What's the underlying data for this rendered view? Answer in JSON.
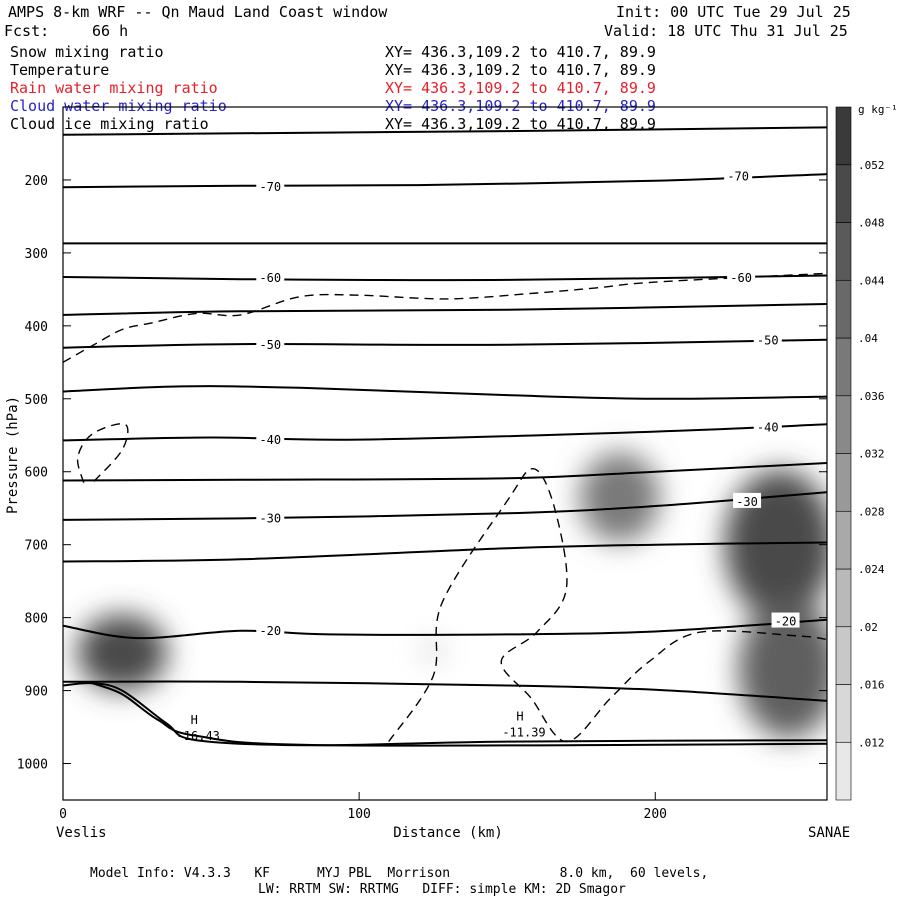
{
  "header": {
    "title": "AMPS 8-km WRF -- Qn Maud Land Coast window",
    "init": "Init: 00 UTC Tue 29 Jul 25",
    "fcst_label": "Fcst:",
    "fcst_value": "66 h",
    "valid": "Valid: 18 UTC Thu 31 Jul 25"
  },
  "fields": [
    {
      "name": "Snow mixing ratio",
      "xy": "XY= 436.3,109.2 to 410.7, 89.9",
      "color": "#000000"
    },
    {
      "name": "Temperature",
      "xy": "XY= 436.3,109.2 to 410.7, 89.9",
      "color": "#000000"
    },
    {
      "name": "Rain water mixing ratio",
      "xy": "XY= 436.3,109.2 to 410.7, 89.9",
      "color": "#e8202a"
    },
    {
      "name": "Cloud water mixing ratio",
      "xy": "XY= 436.3,109.2 to 410.7, 89.9",
      "color": "#2424c8"
    },
    {
      "name": "Cloud ice mixing ratio",
      "xy": "XY= 436.3,109.2 to 410.7, 89.9",
      "color": "#000000"
    }
  ],
  "footer": {
    "line1": "Model Info: V4.3.3   KF      MYJ PBL  Morrison              8.0 km,  60 levels,",
    "line2": "LW: RRTM SW: RRTMG   DIFF: simple KM: 2D Smagor"
  },
  "chart_data": {
    "type": "cross-section contour",
    "xlabel": "Distance (km)",
    "ylabel": "Pressure (hPa)",
    "xlim": [
      0,
      258
    ],
    "ylim": [
      1050,
      100
    ],
    "x_ticks": [
      0,
      100,
      200
    ],
    "y_ticks": [
      200,
      300,
      400,
      500,
      600,
      700,
      800,
      900,
      1000
    ],
    "endpoints": {
      "left": "Veslis",
      "right": "SANAE"
    },
    "colorbar": {
      "unit": "g kg⁻¹",
      "ticks": [
        ".012",
        ".016",
        ".02",
        ".024",
        ".028",
        ".032",
        ".036",
        ".04",
        ".044",
        ".048",
        ".052"
      ],
      "tick_values": [
        0.012,
        0.016,
        0.02,
        0.024,
        0.028,
        0.032,
        0.036,
        0.04,
        0.044,
        0.048,
        0.052
      ],
      "range": [
        0.008,
        0.056
      ]
    },
    "temperature_labels": [
      {
        "text": "-70",
        "x": 70,
        "p": 208
      },
      {
        "text": "-70",
        "x": 228,
        "p": 194
      },
      {
        "text": "-60",
        "x": 70,
        "p": 333
      },
      {
        "text": "-60",
        "x": 229,
        "p": 333
      },
      {
        "text": "-50",
        "x": 70,
        "p": 425
      },
      {
        "text": "-50",
        "x": 238,
        "p": 419
      },
      {
        "text": "-40",
        "x": 70,
        "p": 555
      },
      {
        "text": "-40",
        "x": 238,
        "p": 538
      },
      {
        "text": "-30",
        "x": 70,
        "p": 663
      },
      {
        "text": "-30",
        "x": 231,
        "p": 640
      },
      {
        "text": "-20",
        "x": 70,
        "p": 817
      },
      {
        "text": "-20",
        "x": 244,
        "p": 804
      }
    ],
    "temperature_contours": [
      [
        [
          0,
          138
        ],
        [
          60,
          136
        ],
        [
          150,
          133
        ],
        [
          258,
          128
        ]
      ],
      [
        [
          0,
          210
        ],
        [
          60,
          208
        ],
        [
          120,
          207
        ],
        [
          200,
          201
        ],
        [
          258,
          192
        ]
      ],
      [
        [
          0,
          287
        ],
        [
          100,
          287
        ],
        [
          258,
          287
        ]
      ],
      [
        [
          0,
          333
        ],
        [
          60,
          336
        ],
        [
          150,
          337
        ],
        [
          258,
          331
        ]
      ],
      [
        [
          0,
          385
        ],
        [
          60,
          380
        ],
        [
          150,
          378
        ],
        [
          258,
          370
        ]
      ],
      [
        [
          0,
          430
        ],
        [
          60,
          425
        ],
        [
          150,
          426
        ],
        [
          258,
          419
        ]
      ],
      [
        [
          0,
          490
        ],
        [
          40,
          483
        ],
        [
          80,
          485
        ],
        [
          150,
          495
        ],
        [
          200,
          500
        ],
        [
          258,
          497
        ]
      ],
      [
        [
          0,
          557
        ],
        [
          50,
          553
        ],
        [
          100,
          556
        ],
        [
          200,
          545
        ],
        [
          258,
          535
        ]
      ],
      [
        [
          0,
          612
        ],
        [
          60,
          611
        ],
        [
          150,
          609
        ],
        [
          200,
          600
        ],
        [
          258,
          588
        ]
      ],
      [
        [
          0,
          666
        ],
        [
          60,
          664
        ],
        [
          150,
          657
        ],
        [
          200,
          647
        ],
        [
          258,
          628
        ]
      ],
      [
        [
          0,
          723
        ],
        [
          60,
          720
        ],
        [
          150,
          705
        ],
        [
          200,
          700
        ],
        [
          258,
          697
        ]
      ],
      [
        [
          0,
          811
        ],
        [
          25,
          828
        ],
        [
          60,
          818
        ],
        [
          90,
          823
        ],
        [
          150,
          823
        ],
        [
          200,
          819
        ],
        [
          258,
          803
        ]
      ],
      [
        [
          0,
          888
        ],
        [
          60,
          888
        ],
        [
          150,
          893
        ],
        [
          200,
          899
        ],
        [
          258,
          914
        ]
      ],
      [
        [
          0,
          893
        ],
        [
          10,
          890
        ],
        [
          20,
          900
        ],
        [
          35,
          945
        ],
        [
          45,
          968
        ],
        [
          85,
          975
        ],
        [
          150,
          970
        ],
        [
          258,
          968
        ]
      ],
      [
        [
          10,
          890
        ],
        [
          20,
          905
        ],
        [
          32,
          940
        ],
        [
          45,
          962
        ],
        [
          90,
          975
        ],
        [
          258,
          973
        ]
      ]
    ],
    "dashed_contours": [
      [
        [
          0,
          450
        ],
        [
          10,
          427
        ],
        [
          20,
          405
        ],
        [
          30,
          396
        ],
        [
          45,
          383
        ],
        [
          60,
          385
        ],
        [
          80,
          360
        ],
        [
          100,
          358
        ],
        [
          130,
          363
        ],
        [
          160,
          355
        ],
        [
          180,
          348
        ],
        [
          200,
          340
        ],
        [
          258,
          328
        ]
      ],
      [
        [
          7,
          615
        ],
        [
          5,
          580
        ],
        [
          10,
          548
        ],
        [
          21,
          535
        ],
        [
          20,
          570
        ],
        [
          10,
          615
        ]
      ],
      [
        [
          110,
          970
        ],
        [
          125,
          880
        ],
        [
          128,
          780
        ],
        [
          150,
          640
        ],
        [
          159,
          596
        ],
        [
          166,
          650
        ],
        [
          170,
          760
        ],
        [
          160,
          820
        ],
        [
          148,
          860
        ],
        [
          158,
          910
        ],
        [
          170,
          970
        ],
        [
          185,
          910
        ],
        [
          198,
          860
        ],
        [
          215,
          820
        ],
        [
          248,
          825
        ],
        [
          258,
          830
        ]
      ]
    ],
    "shaded_regions": [
      {
        "x": 20,
        "p": 848,
        "value": 0.05
      },
      {
        "x": 188,
        "p": 635,
        "value": 0.038
      },
      {
        "x": 242,
        "p": 700,
        "value": 0.05
      },
      {
        "x": 245,
        "p": 870,
        "value": 0.045
      },
      {
        "x": 125,
        "p": 845,
        "value": 0.012
      }
    ],
    "highs": [
      {
        "label": "H",
        "value": "-16.43",
        "x": 45,
        "p": 965
      },
      {
        "label": "H",
        "value": "-11.39",
        "x": 155,
        "p": 960
      }
    ]
  }
}
